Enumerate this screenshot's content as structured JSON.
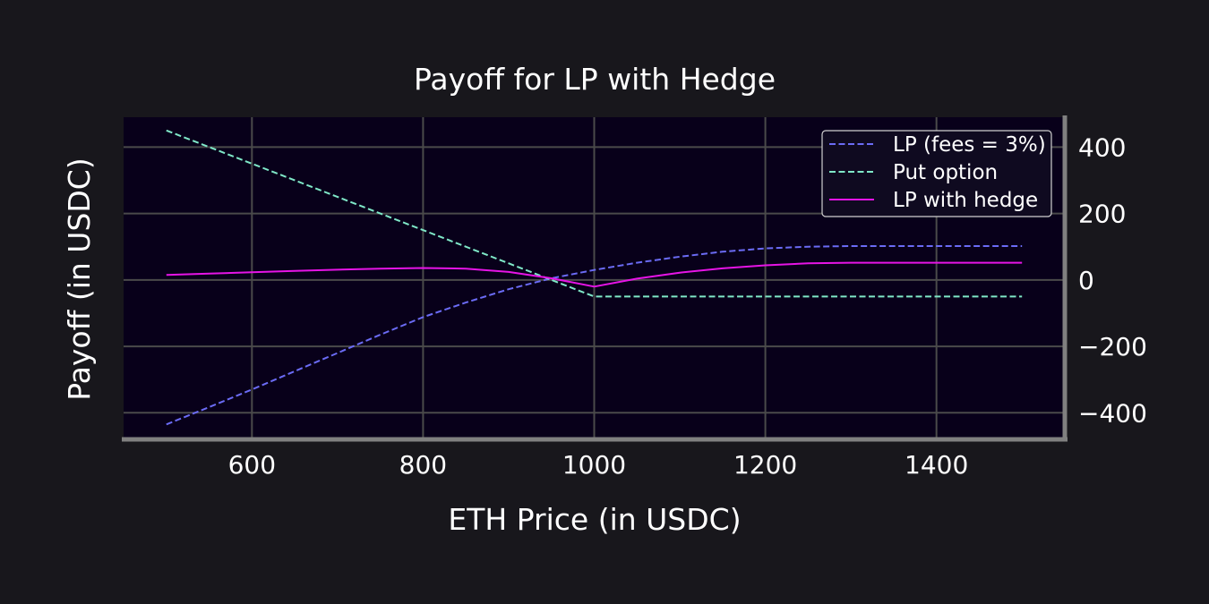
{
  "colors": {
    "figure_background": "#18171c",
    "plot_background": "#08001a",
    "grid": "#4a4a4a",
    "spine": "#808080",
    "text": "#ffffff",
    "lp": "#6b6bf5",
    "put": "#7fe8c8",
    "hedge": "#e614e6"
  },
  "chart_data": {
    "type": "line",
    "title": "Payoff for LP with Hedge",
    "xlabel": "ETH Price (in USDC)",
    "ylabel": "Payoff (in USDC)",
    "xlim": [
      450,
      1550
    ],
    "ylim": [
      -480,
      490
    ],
    "xticks": [
      600,
      800,
      1000,
      1200,
      1400
    ],
    "yticks": [
      -400,
      -200,
      0,
      200,
      400
    ],
    "xtick_labels": [
      "600",
      "800",
      "1000",
      "1200",
      "1400"
    ],
    "ytick_labels": [
      "−400",
      "−200",
      "0",
      "200",
      "400"
    ],
    "y_axis_side": "right",
    "grid": true,
    "legend_position": "top-right",
    "series": [
      {
        "name": "LP (fees = 3%)",
        "style": "dashed",
        "color": "#6b6bf5",
        "x": [
          500,
          550,
          600,
          650,
          700,
          750,
          800,
          850,
          900,
          950,
          1000,
          1050,
          1100,
          1150,
          1200,
          1250,
          1300,
          1350,
          1400,
          1450,
          1500
        ],
        "y": [
          -435,
          -383,
          -330,
          -275,
          -220,
          -165,
          -112,
          -68,
          -28,
          5,
          30,
          52,
          70,
          85,
          95,
          100,
          102,
          102,
          102,
          102,
          102
        ]
      },
      {
        "name": "Put option",
        "style": "dashed",
        "color": "#7fe8c8",
        "x": [
          500,
          1000,
          1500
        ],
        "y": [
          450,
          -50,
          -50
        ]
      },
      {
        "name": "LP with hedge",
        "style": "solid",
        "color": "#e614e6",
        "x": [
          500,
          550,
          600,
          650,
          700,
          750,
          800,
          850,
          900,
          950,
          1000,
          1050,
          1100,
          1150,
          1200,
          1250,
          1300,
          1350,
          1400,
          1450,
          1500
        ],
        "y": [
          15,
          19,
          23,
          27,
          31,
          34,
          36,
          34,
          24,
          5,
          -20,
          4,
          22,
          35,
          44,
          50,
          52,
          52,
          52,
          52,
          52
        ]
      }
    ]
  }
}
